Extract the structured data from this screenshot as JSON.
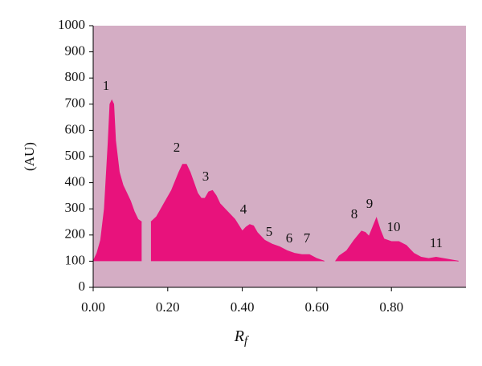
{
  "chart_data": {
    "type": "area",
    "x_label": {
      "main": "R",
      "sub": "f"
    },
    "y_label": "(AU)",
    "x": [
      0.0,
      0.01,
      0.02,
      0.03,
      0.04,
      0.045,
      0.05,
      0.055,
      0.06,
      0.07,
      0.08,
      0.09,
      0.1,
      0.11,
      0.12,
      0.13,
      0.14,
      0.155,
      0.17,
      0.19,
      0.21,
      0.23,
      0.24,
      0.25,
      0.26,
      0.27,
      0.28,
      0.29,
      0.3,
      0.31,
      0.32,
      0.33,
      0.34,
      0.36,
      0.38,
      0.4,
      0.41,
      0.42,
      0.43,
      0.44,
      0.46,
      0.48,
      0.5,
      0.52,
      0.54,
      0.56,
      0.58,
      0.6,
      0.62,
      0.63,
      0.65,
      0.66,
      0.68,
      0.7,
      0.72,
      0.73,
      0.74,
      0.75,
      0.76,
      0.77,
      0.78,
      0.8,
      0.82,
      0.84,
      0.86,
      0.88,
      0.9,
      0.92,
      0.94,
      0.96,
      0.98
    ],
    "series": [
      {
        "color": "#e8127c",
        "values": [
          100,
          130,
          180,
          300,
          550,
          700,
          715,
          700,
          560,
          440,
          390,
          360,
          330,
          290,
          260,
          250,
          null,
          250,
          270,
          320,
          370,
          440,
          470,
          470,
          440,
          400,
          360,
          340,
          340,
          365,
          370,
          350,
          320,
          290,
          260,
          215,
          230,
          240,
          235,
          210,
          180,
          165,
          155,
          140,
          130,
          125,
          125,
          110,
          100,
          null,
          100,
          120,
          140,
          180,
          215,
          210,
          195,
          230,
          265,
          220,
          185,
          175,
          175,
          160,
          130,
          115,
          110,
          115,
          110,
          105,
          100
        ]
      }
    ],
    "peak_labels": [
      "1",
      "2",
      "3",
      "4",
      "5",
      "6",
      "7",
      "8",
      "9",
      "10",
      "11"
    ],
    "xlim": [
      0,
      1.0
    ],
    "ylim": [
      0,
      1000
    ],
    "xticks": [
      {
        "value": 0,
        "label": "0.00"
      },
      {
        "value": 0.2,
        "label": "0.20"
      },
      {
        "value": 0.4,
        "label": "0.40"
      },
      {
        "value": 0.6,
        "label": "0.60"
      },
      {
        "value": 0.8,
        "label": "0.80"
      }
    ],
    "yticks": [
      0,
      100,
      200,
      300,
      400,
      500,
      600,
      700,
      800,
      900,
      1000
    ],
    "background": "#d4adc4"
  }
}
